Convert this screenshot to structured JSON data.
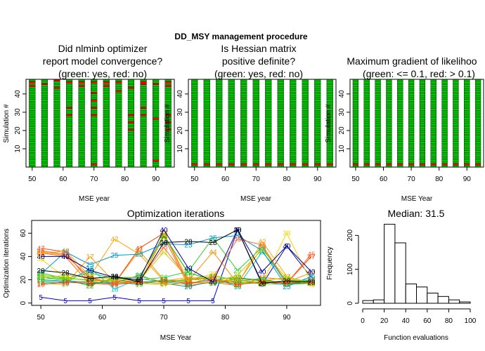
{
  "main_title": "DD_MSY management procedure",
  "panels": {
    "convergence": {
      "title_lines": [
        "Did nlminb optimizer",
        "report model convergence?",
        "(green: yes, red: no)"
      ],
      "xlabel": "MSE year",
      "ylabel": "Simulation #",
      "x_ticks": [
        "50",
        "60",
        "70",
        "80",
        "90"
      ],
      "y_ticks": [
        "10",
        "20",
        "30",
        "40"
      ],
      "colors": {
        "ok": "#00cc00",
        "bad": "#ff0000"
      }
    },
    "hessian": {
      "title_lines": [
        "Is Hessian matrix",
        "positive definite?",
        "(green: yes, red: no)"
      ],
      "xlabel": "MSE year",
      "ylabel": "Simulation #",
      "x_ticks": [
        "50",
        "60",
        "70",
        "80",
        "90"
      ],
      "y_ticks": [
        "10",
        "20",
        "30",
        "40"
      ]
    },
    "gradient": {
      "title_lines": [
        "Maximum gradient of likelihoo",
        "(green: <= 0.1, red: > 0.1)"
      ],
      "xlabel": "MSE Year",
      "ylabel": "Simulation #",
      "x_ticks": [
        "50",
        "60",
        "70",
        "80",
        "90"
      ],
      "y_ticks": [
        "10",
        "20",
        "30",
        "40"
      ]
    },
    "iterations": {
      "title": "Optimization iterations",
      "xlabel": "MSE Year",
      "ylabel": "Optimization iterations",
      "x_ticks": [
        "50",
        "60",
        "70",
        "80",
        "90"
      ],
      "y_ticks": [
        "0",
        "20",
        "40",
        "60"
      ]
    },
    "histogram": {
      "title": "Median: 31.5",
      "xlabel": "Function evaluations",
      "ylabel": "Frequency",
      "x_ticks": [
        "0",
        "20",
        "40",
        "60",
        "80",
        "100"
      ],
      "y_ticks": [
        "0",
        "100",
        "200"
      ]
    }
  },
  "chart_data": [
    {
      "type": "heatmap",
      "panel": "convergence",
      "x_years": [
        50,
        54,
        58,
        62,
        66,
        70,
        74,
        78,
        82,
        86,
        90,
        94
      ],
      "n_sims": 48,
      "xlim": [
        48,
        96
      ],
      "ylim": [
        0,
        48
      ],
      "failures": [
        [
          50,
          47
        ],
        [
          50,
          45
        ],
        [
          54,
          46
        ],
        [
          58,
          48
        ],
        [
          58,
          44
        ],
        [
          62,
          47
        ],
        [
          62,
          33
        ],
        [
          62,
          29
        ],
        [
          66,
          47
        ],
        [
          66,
          45
        ],
        [
          70,
          47
        ],
        [
          70,
          41
        ],
        [
          70,
          37
        ],
        [
          70,
          33
        ],
        [
          70,
          29
        ],
        [
          70,
          2
        ],
        [
          74,
          47
        ],
        [
          74,
          45
        ],
        [
          78,
          47
        ],
        [
          78,
          42
        ],
        [
          82,
          44
        ],
        [
          82,
          29
        ],
        [
          82,
          25
        ],
        [
          82,
          21
        ],
        [
          86,
          47
        ],
        [
          86,
          46
        ],
        [
          86,
          33
        ],
        [
          86,
          29
        ],
        [
          90,
          46
        ],
        [
          90,
          27
        ],
        [
          90,
          4
        ],
        [
          94,
          47
        ],
        [
          94,
          45
        ],
        [
          94,
          29
        ],
        [
          94,
          25
        ],
        [
          94,
          21
        ]
      ]
    },
    {
      "type": "heatmap",
      "panel": "hessian",
      "x_years": [
        50,
        54,
        58,
        62,
        66,
        70,
        74,
        78,
        82,
        86,
        90,
        94
      ],
      "n_sims": 48,
      "xlim": [
        48,
        96
      ],
      "ylim": [
        0,
        48
      ],
      "failures": [
        [
          50,
          2
        ],
        [
          54,
          2
        ],
        [
          58,
          2
        ],
        [
          62,
          2
        ],
        [
          66,
          2
        ],
        [
          70,
          2
        ],
        [
          74,
          2
        ],
        [
          78,
          2
        ],
        [
          82,
          2
        ],
        [
          86,
          2
        ],
        [
          90,
          2
        ],
        [
          94,
          2
        ]
      ]
    },
    {
      "type": "heatmap",
      "panel": "gradient",
      "x_years": [
        50,
        54,
        58,
        62,
        66,
        70,
        74,
        78,
        82,
        86,
        90,
        94
      ],
      "n_sims": 48,
      "xlim": [
        48,
        96
      ],
      "ylim": [
        0,
        48
      ],
      "failures": [
        [
          50,
          2
        ],
        [
          54,
          2
        ],
        [
          58,
          2
        ],
        [
          62,
          2
        ],
        [
          66,
          2
        ],
        [
          70,
          2
        ],
        [
          74,
          2
        ],
        [
          78,
          2
        ],
        [
          82,
          2
        ],
        [
          86,
          2
        ],
        [
          90,
          2
        ],
        [
          94,
          2
        ]
      ]
    },
    {
      "type": "line",
      "panel": "iterations",
      "xlim": [
        48.5,
        95.5
      ],
      "ylim": [
        -2,
        71
      ],
      "x": [
        50,
        54,
        58,
        62,
        66,
        70,
        74,
        78,
        82,
        86,
        90,
        94
      ],
      "series": [
        {
          "label": "5",
          "color": "#0000cc",
          "values": [
            5,
            2,
            2,
            5,
            2,
            2,
            2,
            2,
            63,
            16,
            49,
            22
          ]
        },
        {
          "label": "43",
          "color": "#ff6600",
          "values": [
            43,
            40,
            16,
            20,
            18,
            57,
            15,
            18,
            15,
            22,
            20,
            17
          ]
        },
        {
          "label": "44",
          "color": "#ff8c00",
          "values": [
            44,
            41,
            22,
            17,
            45,
            20,
            19,
            44,
            17,
            48,
            18,
            26
          ]
        },
        {
          "label": "47",
          "color": "#ff4500",
          "values": [
            47,
            44,
            18,
            17,
            47,
            60,
            17,
            18,
            21,
            20,
            17,
            40
          ]
        },
        {
          "label": "42",
          "color": "#ffa500",
          "values": [
            42,
            45,
            23,
            55,
            42,
            19,
            22,
            20,
            16,
            53,
            23,
            16
          ]
        },
        {
          "label": "38",
          "color": "#ffd000",
          "values": [
            38,
            22,
            19,
            18,
            17,
            60,
            20,
            25,
            17,
            17,
            60,
            18
          ]
        },
        {
          "label": "26",
          "color": "#33cc33",
          "values": [
            26,
            21,
            26,
            21,
            20,
            22,
            27,
            56,
            28,
            48,
            16,
            17
          ]
        },
        {
          "label": "22",
          "color": "#00b300",
          "values": [
            22,
            20,
            15,
            22,
            22,
            58,
            26,
            20,
            22,
            19,
            17,
            17
          ]
        },
        {
          "label": "18",
          "color": "#00cccc",
          "values": [
            18,
            17,
            30,
            12,
            21,
            18,
            16,
            22,
            14,
            44,
            19,
            20
          ]
        },
        {
          "label": "25",
          "color": "#0099cc",
          "values": [
            25,
            44,
            33,
            41,
            42,
            51,
            50,
            56,
            58,
            45,
            14,
            23
          ]
        },
        {
          "label": "20",
          "color": "#009999",
          "values": [
            20,
            19,
            18,
            17,
            24,
            17,
            14,
            19,
            18,
            17,
            16,
            19
          ]
        },
        {
          "label": "23",
          "color": "#66cc00",
          "values": [
            23,
            21,
            20,
            19,
            18,
            17,
            21,
            23,
            20,
            16,
            18,
            18
          ]
        },
        {
          "label": "21",
          "color": "#cccc00",
          "values": [
            21,
            24,
            22,
            21,
            19,
            44,
            21,
            18,
            24,
            46,
            21,
            17
          ]
        },
        {
          "label": "19",
          "color": "#00cc66",
          "values": [
            19,
            18,
            17,
            18,
            16,
            20,
            18,
            17,
            19,
            21,
            16,
            20
          ]
        },
        {
          "label": "17",
          "color": "#ff9900",
          "values": [
            17,
            16,
            40,
            18,
            17,
            16,
            17,
            18,
            20,
            18,
            19,
            17
          ]
        },
        {
          "label": "24",
          "color": "#99cc00",
          "values": [
            24,
            22,
            19,
            20,
            23,
            18,
            20,
            21,
            17,
            19,
            22,
            18
          ]
        },
        {
          "label": "16",
          "color": "#ff3300",
          "values": [
            16,
            18,
            17,
            16,
            18,
            19,
            17,
            20,
            16,
            18,
            17,
            19
          ]
        },
        {
          "label": "45",
          "color": "#ff6633",
          "values": [
            45,
            42,
            21,
            17,
            19,
            48,
            20,
            22,
            55,
            50,
            17,
            42
          ]
        },
        {
          "label": "40",
          "color": "#000088",
          "values": [
            40,
            40,
            28,
            22,
            20,
            63,
            30,
            18,
            63,
            27,
            49,
            27
          ]
        },
        {
          "label": "28",
          "color": "#000000",
          "values": [
            28,
            26,
            21,
            23,
            18,
            52,
            53,
            52,
            63,
            17,
            19,
            18
          ]
        }
      ]
    },
    {
      "type": "bar",
      "panel": "histogram",
      "bin_edges": [
        0,
        10,
        20,
        30,
        40,
        50,
        60,
        70,
        80,
        90,
        100
      ],
      "values": [
        8,
        10,
        233,
        178,
        57,
        48,
        30,
        20,
        10,
        4
      ],
      "xlim": [
        0,
        100
      ],
      "ylim": [
        0,
        240
      ]
    }
  ]
}
